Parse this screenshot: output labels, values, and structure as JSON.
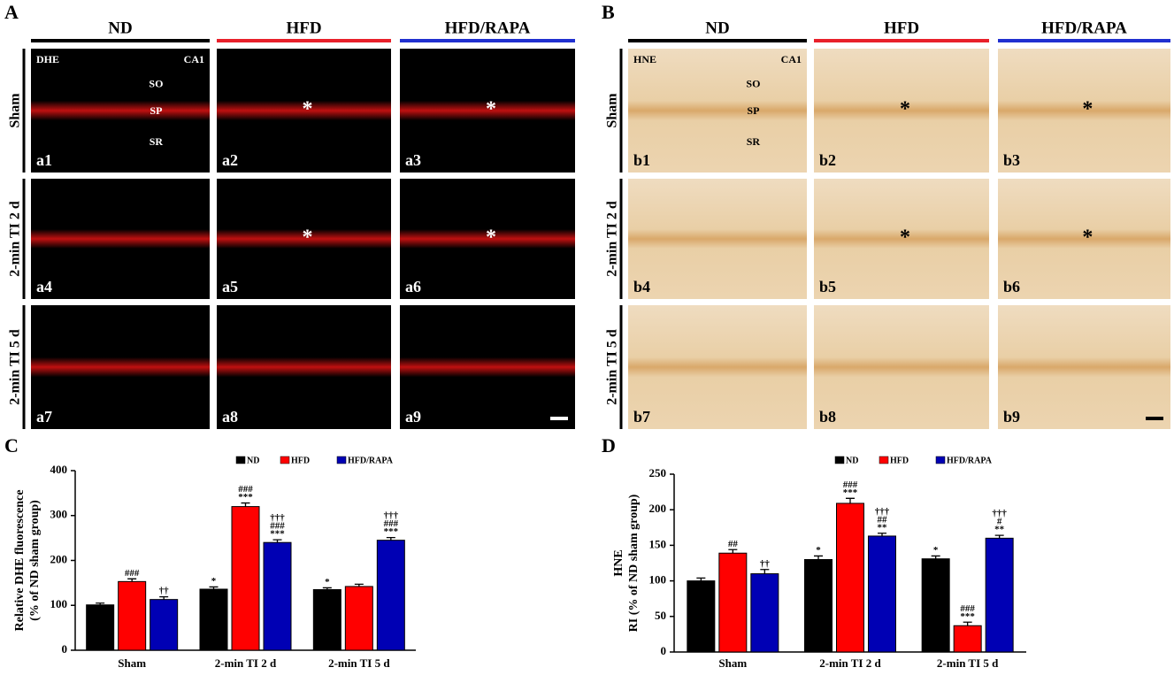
{
  "panels": [
    {
      "letter": "A",
      "columns": [
        "ND",
        "HFD",
        "HFD/RAPA"
      ],
      "column_colors": [
        "#000000",
        "#e8202a",
        "#2030d0"
      ],
      "rows": [
        "Sham",
        "2-min TI 2 d",
        "2-min TI 5 d"
      ],
      "stain": "DHE",
      "region": "CA1",
      "layers": [
        "SO",
        "SP",
        "SR"
      ],
      "tags": [
        "a1",
        "a2",
        "a3",
        "a4",
        "a5",
        "a6",
        "a7",
        "a8",
        "a9"
      ],
      "markers": [
        null,
        "*",
        "*",
        null,
        "*",
        "*",
        null,
        null,
        null
      ]
    },
    {
      "letter": "B",
      "columns": [
        "ND",
        "HFD",
        "HFD/RAPA"
      ],
      "column_colors": [
        "#000000",
        "#e8202a",
        "#2030d0"
      ],
      "rows": [
        "Sham",
        "2-min TI 2 d",
        "2-min TI 5 d"
      ],
      "stain": "HNE",
      "region": "CA1",
      "layers": [
        "SO",
        "SP",
        "SR"
      ],
      "tags": [
        "b1",
        "b2",
        "b3",
        "b4",
        "b5",
        "b6",
        "b7",
        "b8",
        "b9"
      ],
      "markers": [
        null,
        "*",
        "*",
        null,
        "*",
        "*",
        null,
        null,
        null
      ]
    }
  ],
  "chart_data": [
    {
      "type": "bar",
      "letter": "C",
      "y_label": [
        "Relative DHE fluorescence",
        "(% of ND sham group)"
      ],
      "categories": [
        "Sham",
        "2-min TI 2 d",
        "2-min TI 5 d"
      ],
      "series": [
        {
          "name": "ND",
          "color": "#000000",
          "values": [
            101,
            136,
            135
          ],
          "errors": [
            4,
            5,
            4
          ],
          "annotations": [
            null,
            [
              "*"
            ],
            [
              "*"
            ]
          ]
        },
        {
          "name": "HFD",
          "color": "#ff0000",
          "values": [
            153,
            320,
            142
          ],
          "errors": [
            6,
            8,
            5
          ],
          "annotations": [
            [
              "###"
            ],
            [
              "###",
              "***"
            ],
            null
          ]
        },
        {
          "name": "HFD/RAPA",
          "color": "#0000b4",
          "values": [
            113,
            240,
            245
          ],
          "errors": [
            6,
            6,
            6
          ],
          "annotations": [
            [
              "††"
            ],
            [
              "†††",
              "###",
              "***"
            ],
            [
              "†††",
              "###",
              "***"
            ]
          ]
        }
      ],
      "ylim": [
        0,
        400
      ],
      "yticks": [
        0,
        100,
        200,
        300,
        400
      ]
    },
    {
      "type": "bar",
      "letter": "D",
      "y_label": [
        "HNE",
        "RI (% of ND sham group)"
      ],
      "categories": [
        "Sham",
        "2-min TI 2 d",
        "2-min TI 5 d"
      ],
      "series": [
        {
          "name": "ND",
          "color": "#000000",
          "values": [
            100,
            130,
            131
          ],
          "errors": [
            4,
            5,
            4
          ],
          "annotations": [
            null,
            [
              "*"
            ],
            [
              "*"
            ]
          ]
        },
        {
          "name": "HFD",
          "color": "#ff0000",
          "values": [
            139,
            209,
            37
          ],
          "errors": [
            5,
            7,
            5
          ],
          "annotations": [
            [
              "##"
            ],
            [
              "###",
              "***"
            ],
            [
              "###",
              "***"
            ]
          ]
        },
        {
          "name": "HFD/RAPA",
          "color": "#0000b4",
          "values": [
            110,
            163,
            160
          ],
          "errors": [
            6,
            4,
            4
          ],
          "annotations": [
            [
              "††"
            ],
            [
              "†††",
              "##",
              "**"
            ],
            [
              "†††",
              "#",
              "**"
            ]
          ]
        }
      ],
      "ylim": [
        0,
        250
      ],
      "yticks": [
        0,
        50,
        100,
        150,
        200,
        250
      ]
    }
  ]
}
